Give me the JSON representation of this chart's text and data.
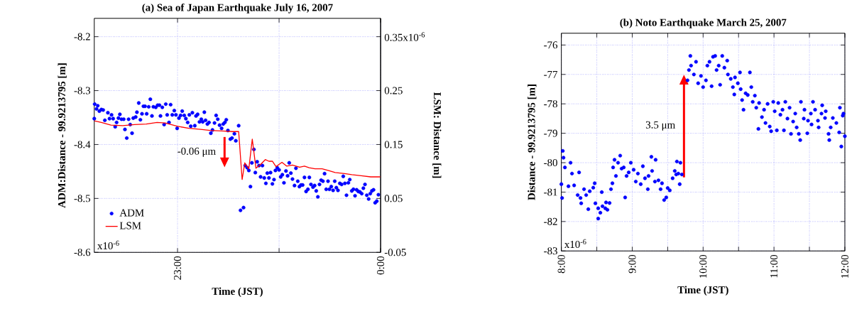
{
  "chart_data": [
    {
      "type": "scatter",
      "title": "(a) Sea of Japan Earthquake July 16, 2007",
      "xlabel": "Time (JST)",
      "ylabel": "ADM:Distance - 99.9213795 [m]",
      "y2label": "LSM: Distance [m]",
      "xlim": [
        22.59,
        24
      ],
      "ylim": [
        -8.6,
        -8.166
      ],
      "y2lim": [
        -0.05,
        0.384
      ],
      "xticks": [
        {
          "value": 23,
          "label": "23:00"
        },
        {
          "value": 23.5,
          "label": null
        },
        {
          "value": 24,
          "label": "0:00"
        }
      ],
      "yticks": [
        -8.6,
        -8.5,
        -8.4,
        -8.3,
        -8.2
      ],
      "y2ticks": [
        -0.05,
        0.05,
        0.15,
        0.25,
        0.35
      ],
      "grid": true,
      "legend": "bottom left",
      "series": [
        {
          "name": "ADM",
          "color": "#0000ff",
          "marker": "circle",
          "x": [
            22.59,
            22.592,
            22.601,
            22.607,
            22.615,
            22.625,
            22.634,
            22.642,
            22.657,
            22.665,
            22.675,
            22.683,
            22.693,
            22.7,
            22.709,
            22.716,
            22.724,
            22.735,
            22.741,
            22.75,
            22.759,
            22.767,
            22.776,
            22.782,
            22.794,
            22.8,
            22.809,
            22.817,
            22.825,
            22.832,
            22.84,
            22.848,
            22.858,
            22.866,
            22.874,
            22.881,
            22.893,
            22.902,
            22.911,
            22.916,
            22.925,
            22.934,
            22.942,
            22.949,
            22.958,
            22.966,
            22.974,
            22.984,
            22.992,
            22.998,
            23.007,
            23.015,
            23.023,
            23.033,
            23.041,
            23.05,
            23.058,
            23.065,
            23.073,
            23.085,
            23.091,
            23.099,
            23.108,
            23.117,
            23.124,
            23.132,
            23.138,
            23.147,
            23.155,
            23.164,
            23.172,
            23.182,
            23.19,
            23.198,
            23.207,
            23.217,
            23.225,
            23.233,
            23.24,
            23.248,
            23.26,
            23.268,
            23.28,
            23.287,
            23.301,
            23.31,
            23.325,
            23.333,
            23.343,
            23.351,
            23.359,
            23.366,
            23.376,
            23.383,
            23.392,
            23.401,
            23.409,
            23.418,
            23.427,
            23.435,
            23.442,
            23.45,
            23.458,
            23.467,
            23.475,
            23.482,
            23.491,
            23.5,
            23.508,
            23.516,
            23.524,
            23.534,
            23.542,
            23.55,
            23.558,
            23.566,
            23.576,
            23.583,
            23.592,
            23.6,
            23.608,
            23.616,
            23.625,
            23.633,
            23.642,
            23.649,
            23.657,
            23.667,
            23.675,
            23.683,
            23.691,
            23.699,
            23.707,
            23.716,
            23.724,
            23.732,
            23.741,
            23.748,
            23.757,
            23.766,
            23.774,
            23.782,
            23.79,
            23.799,
            23.808,
            23.816,
            23.824,
            23.832,
            23.841,
            23.848,
            23.858,
            23.866,
            23.874,
            23.882,
            23.89,
            23.898,
            23.907,
            23.915,
            23.923,
            23.932,
            23.941,
            23.949,
            23.957,
            23.965,
            23.973,
            23.981,
            23.989
          ],
          "values": [
            -8.352,
            -8.325,
            -8.334,
            -8.328,
            -8.338,
            -8.335,
            -8.336,
            -8.355,
            -8.341,
            -8.352,
            -8.345,
            -8.352,
            -8.367,
            -8.359,
            -8.351,
            -8.344,
            -8.353,
            -8.353,
            -8.372,
            -8.388,
            -8.353,
            -8.363,
            -8.379,
            -8.351,
            -8.349,
            -8.34,
            -8.323,
            -8.354,
            -8.343,
            -8.329,
            -8.329,
            -8.343,
            -8.33,
            -8.316,
            -8.347,
            -8.33,
            -8.331,
            -8.327,
            -8.327,
            -8.347,
            -8.331,
            -8.363,
            -8.325,
            -8.345,
            -8.359,
            -8.326,
            -8.345,
            -8.337,
            -8.345,
            -8.37,
            -8.351,
            -8.346,
            -8.338,
            -8.346,
            -8.352,
            -8.359,
            -8.345,
            -8.366,
            -8.341,
            -8.365,
            -8.347,
            -8.344,
            -8.358,
            -8.353,
            -8.358,
            -8.34,
            -8.355,
            -8.362,
            -8.359,
            -8.379,
            -8.373,
            -8.36,
            -8.346,
            -8.353,
            -8.364,
            -8.37,
            -8.362,
            -8.359,
            -8.354,
            -8.374,
            -8.39,
            -8.388,
            -8.38,
            -8.393,
            -8.365,
            -8.522,
            -8.517,
            -8.439,
            -8.443,
            -8.448,
            -8.478,
            -8.434,
            -8.409,
            -8.452,
            -8.432,
            -8.439,
            -8.46,
            -8.439,
            -8.462,
            -8.472,
            -8.453,
            -8.462,
            -8.452,
            -8.473,
            -8.465,
            -8.448,
            -8.443,
            -8.447,
            -8.46,
            -8.456,
            -8.471,
            -8.449,
            -8.458,
            -8.434,
            -8.453,
            -8.464,
            -8.476,
            -8.444,
            -8.468,
            -8.478,
            -8.475,
            -8.475,
            -8.461,
            -8.487,
            -8.483,
            -8.461,
            -8.474,
            -8.479,
            -8.476,
            -8.486,
            -8.497,
            -8.474,
            -8.466,
            -8.468,
            -8.454,
            -8.483,
            -8.468,
            -8.483,
            -8.478,
            -8.485,
            -8.468,
            -8.48,
            -8.485,
            -8.472,
            -8.474,
            -8.459,
            -8.472,
            -8.494,
            -8.471,
            -8.465,
            -8.486,
            -8.483,
            -8.495,
            -8.484,
            -8.487,
            -8.488,
            -8.491,
            -8.481,
            -8.474,
            -8.494,
            -8.501,
            -8.491,
            -8.486,
            -8.484,
            -8.508,
            -8.505,
            -8.493
          ]
        },
        {
          "name": "LSM",
          "type": "line",
          "axis": "y2",
          "color": "#ff0000",
          "marker": "none",
          "x": [
            22.59,
            22.625,
            22.672,
            22.73,
            22.788,
            22.846,
            22.899,
            22.939,
            22.998,
            23.056,
            23.114,
            23.161,
            23.219,
            23.275,
            23.301,
            23.318,
            23.331,
            23.351,
            23.368,
            23.386,
            23.409,
            23.432,
            23.45,
            23.467,
            23.485,
            23.514,
            23.537,
            23.566,
            23.601,
            23.625,
            23.648,
            23.677,
            23.712,
            23.741,
            23.776,
            23.823,
            23.858,
            23.904,
            23.951,
            23.998
          ],
          "values": [
            0.194,
            0.191,
            0.186,
            0.185,
            0.187,
            0.188,
            0.191,
            0.19,
            0.184,
            0.18,
            0.178,
            0.176,
            0.175,
            0.174,
            0.174,
            0.085,
            0.116,
            0.105,
            0.16,
            0.106,
            0.113,
            0.122,
            0.119,
            0.119,
            0.109,
            0.117,
            0.11,
            0.112,
            0.108,
            0.11,
            0.107,
            0.105,
            0.105,
            0.102,
            0.098,
            0.096,
            0.094,
            0.092,
            0.09,
            0.09
          ]
        }
      ],
      "annotations": [
        "-0.06 μm",
        "x10$^{-6}$",
        "x10$^{-6}$"
      ]
    },
    {
      "type": "scatter",
      "title": "(b) Noto Earthquake March 25, 2007",
      "xlabel": "Time (JST)",
      "ylabel": "Distance - 99.9213795 [m]",
      "xlim": [
        8,
        12
      ],
      "ylim": [
        -83,
        -75.6
      ],
      "xticks": [
        {
          "value": 8,
          "label": "8:00"
        },
        {
          "value": 8.5,
          "label": null
        },
        {
          "value": 9,
          "label": "9:00"
        },
        {
          "value": 9.5,
          "label": null
        },
        {
          "value": 10,
          "label": "10:00"
        },
        {
          "value": 10.5,
          "label": null
        },
        {
          "value": 11,
          "label": "11:00"
        },
        {
          "value": 11.5,
          "label": null
        },
        {
          "value": 12,
          "label": "12:00"
        }
      ],
      "yticks": [
        -83,
        -82,
        -81,
        -80,
        -79,
        -78,
        -77,
        -76
      ],
      "grid": true,
      "series": [
        {
          "color": "#0000ff",
          "marker": "circle",
          "x": [
            8.0,
            8.01,
            8.02,
            8.03,
            8.05,
            8.1,
            8.13,
            8.15,
            8.18,
            8.23,
            8.25,
            8.27,
            8.28,
            8.32,
            8.35,
            8.38,
            8.4,
            8.45,
            8.47,
            8.48,
            8.52,
            8.52,
            8.55,
            8.57,
            8.58,
            8.62,
            8.63,
            8.65,
            8.68,
            8.7,
            8.72,
            8.73,
            8.75,
            8.77,
            8.8,
            8.83,
            8.85,
            8.88,
            8.9,
            8.92,
            8.95,
            8.98,
            9.02,
            9.05,
            9.08,
            9.12,
            9.15,
            9.18,
            9.22,
            9.23,
            9.27,
            9.28,
            9.32,
            9.33,
            9.37,
            9.4,
            9.42,
            9.45,
            9.48,
            9.5,
            9.53,
            9.57,
            9.6,
            9.62,
            9.63,
            9.65,
            9.67,
            9.68,
            9.7,
            9.78,
            9.8,
            9.82,
            9.83,
            9.87,
            9.9,
            9.93,
            9.97,
            10.0,
            10.04,
            10.06,
            10.09,
            10.12,
            10.14,
            10.17,
            10.19,
            10.22,
            10.24,
            10.27,
            10.3,
            10.34,
            10.35,
            10.39,
            10.42,
            10.44,
            10.45,
            10.49,
            10.52,
            10.53,
            10.55,
            10.57,
            10.6,
            10.63,
            10.66,
            10.68,
            10.7,
            10.73,
            10.75,
            10.78,
            10.79,
            10.83,
            10.86,
            10.88,
            10.91,
            10.94,
            10.96,
            10.99,
            11.01,
            11.04,
            11.06,
            11.09,
            11.12,
            11.14,
            11.16,
            11.19,
            11.22,
            11.24,
            11.27,
            11.3,
            11.32,
            11.35,
            11.37,
            11.38,
            11.42,
            11.43,
            11.47,
            11.48,
            11.52,
            11.53,
            11.55,
            11.58,
            11.62,
            11.63,
            11.67,
            11.68,
            11.72,
            11.73,
            11.77,
            11.78,
            11.8,
            11.83,
            11.88,
            11.92,
            11.93,
            11.95,
            11.97,
            11.98,
            12.0
          ],
          "values": [
            -80.73,
            -81.2,
            -79.6,
            -79.83,
            -80.16,
            -80.8,
            -80.0,
            -80.37,
            -80.77,
            -81.1,
            -80.33,
            -81.2,
            -81.38,
            -80.9,
            -81.1,
            -81.58,
            -80.97,
            -80.85,
            -80.7,
            -81.38,
            -81.55,
            -81.9,
            -81.7,
            -81.0,
            -81.48,
            -81.55,
            -81.35,
            -81.6,
            -81.37,
            -80.9,
            -80.7,
            -80.16,
            -79.9,
            -80.45,
            -80.0,
            -79.76,
            -80.2,
            -80.16,
            -81.18,
            -80.45,
            -80.33,
            -80.0,
            -80.24,
            -80.64,
            -80.37,
            -80.73,
            -80.12,
            -80.53,
            -80.9,
            -80.45,
            -79.8,
            -80.28,
            -80.64,
            -79.9,
            -80.6,
            -80.9,
            -80.7,
            -81.27,
            -81.18,
            -80.86,
            -80.94,
            -80.53,
            -80.28,
            -80.4,
            -79.96,
            -80.37,
            -80.73,
            -80.0,
            -80.4,
            -77.2,
            -76.85,
            -76.37,
            -76.7,
            -77.0,
            -76.57,
            -77.3,
            -77.05,
            -77.43,
            -77.2,
            -76.7,
            -76.57,
            -77.4,
            -76.4,
            -76.37,
            -76.85,
            -76.7,
            -77.35,
            -76.37,
            -76.77,
            -76.53,
            -77.0,
            -77.15,
            -77.43,
            -77.68,
            -77.1,
            -77.3,
            -76.93,
            -77.5,
            -77.87,
            -78.2,
            -77.64,
            -77.7,
            -76.93,
            -77.43,
            -77.93,
            -77.72,
            -78.13,
            -78.85,
            -77.97,
            -78.45,
            -78.2,
            -78.65,
            -78.0,
            -78.77,
            -78.93,
            -77.93,
            -78.25,
            -78.9,
            -77.97,
            -78.37,
            -78.2,
            -78.9,
            -77.93,
            -78.5,
            -78.13,
            -79.02,
            -78.6,
            -78.33,
            -78.8,
            -79.02,
            -79.23,
            -77.93,
            -78.5,
            -78.2,
            -79.0,
            -78.57,
            -78.33,
            -78.7,
            -77.93,
            -78.2,
            -78.57,
            -78.8,
            -78.33,
            -78.05,
            -78.48,
            -78.25,
            -79.02,
            -79.23,
            -78.8,
            -78.48,
            -78.65,
            -78.97,
            -78.13,
            -79.45,
            -78.4,
            -78.33,
            -79.1
          ]
        }
      ],
      "annotations": [
        "3.5 μm",
        "x10$^{-6}$"
      ]
    }
  ]
}
